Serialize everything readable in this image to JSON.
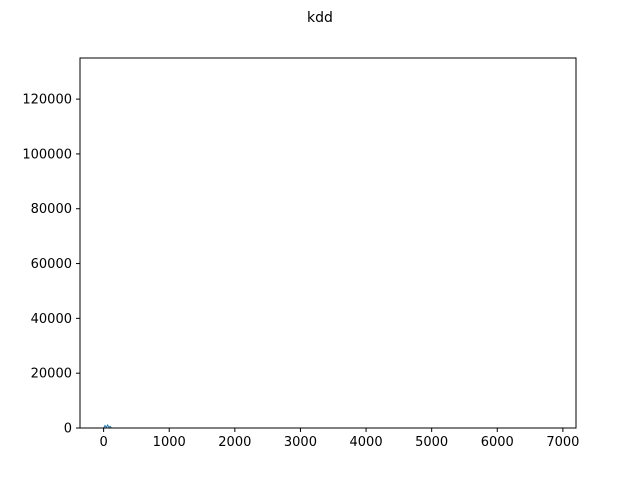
{
  "chart_data": {
    "type": "line",
    "title": "kdd",
    "xlabel": "",
    "ylabel": "",
    "xlim": [
      -360,
      7200
    ],
    "ylim": [
      0,
      135000
    ],
    "xticks": [
      0,
      1000,
      2000,
      3000,
      4000,
      5000,
      6000,
      7000
    ],
    "xtick_labels": [
      "0",
      "1000",
      "2000",
      "3000",
      "4000",
      "5000",
      "6000",
      "7000"
    ],
    "yticks": [
      0,
      20000,
      40000,
      60000,
      80000,
      100000,
      120000
    ],
    "ytick_labels": [
      "0",
      "20000",
      "40000",
      "60000",
      "80000",
      "100000",
      "120000"
    ],
    "grid": false,
    "series": [
      {
        "color": "#1f77b4",
        "x": [
          0,
          20,
          40,
          60,
          80,
          100,
          120
        ],
        "y": [
          0,
          900,
          200,
          1100,
          300,
          600,
          0
        ]
      }
    ]
  }
}
